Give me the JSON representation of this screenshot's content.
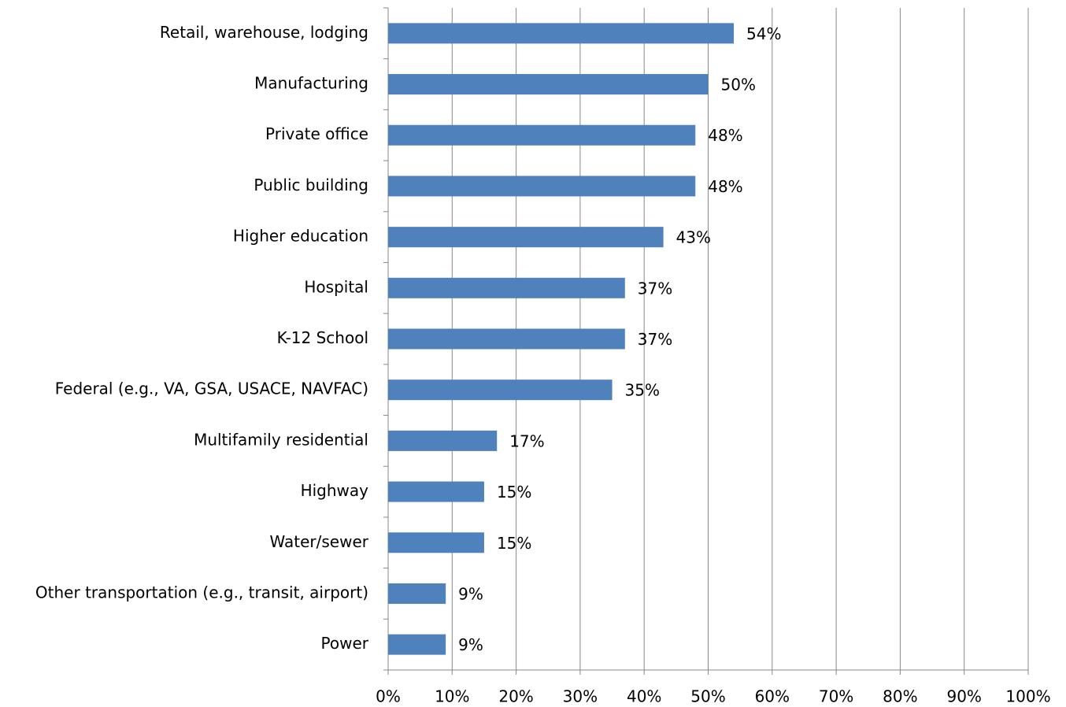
{
  "chart_data": {
    "type": "bar",
    "orientation": "horizontal",
    "categories": [
      "Retail, warehouse, lodging",
      "Manufacturing",
      "Private office",
      "Public building",
      "Higher education",
      "Hospital",
      "K-12 School",
      "Federal (e.g., VA, GSA, USACE, NAVFAC)",
      "Multifamily residential",
      "Highway",
      "Water/sewer",
      "Other transportation (e.g., transit, airport)",
      "Power"
    ],
    "values": [
      54,
      50,
      48,
      48,
      43,
      37,
      37,
      35,
      17,
      15,
      15,
      9,
      9
    ],
    "value_labels": [
      "54%",
      "50%",
      "48%",
      "48%",
      "43%",
      "37%",
      "37%",
      "35%",
      "17%",
      "15%",
      "15%",
      "9%",
      "9%"
    ],
    "color": "#4f81bd",
    "xlim": [
      0,
      100
    ],
    "xticks": [
      {
        "value": 0,
        "label": "0%"
      },
      {
        "value": 10,
        "label": "10%"
      },
      {
        "value": 20,
        "label": "20%"
      },
      {
        "value": 30,
        "label": "30%"
      },
      {
        "value": 40,
        "label": "40%"
      },
      {
        "value": 50,
        "label": "50%"
      },
      {
        "value": 60,
        "label": "60%"
      },
      {
        "value": 70,
        "label": "70%"
      },
      {
        "value": 80,
        "label": "80%"
      },
      {
        "value": 90,
        "label": "90%"
      },
      {
        "value": 100,
        "label": "100%"
      }
    ],
    "grid": true
  }
}
